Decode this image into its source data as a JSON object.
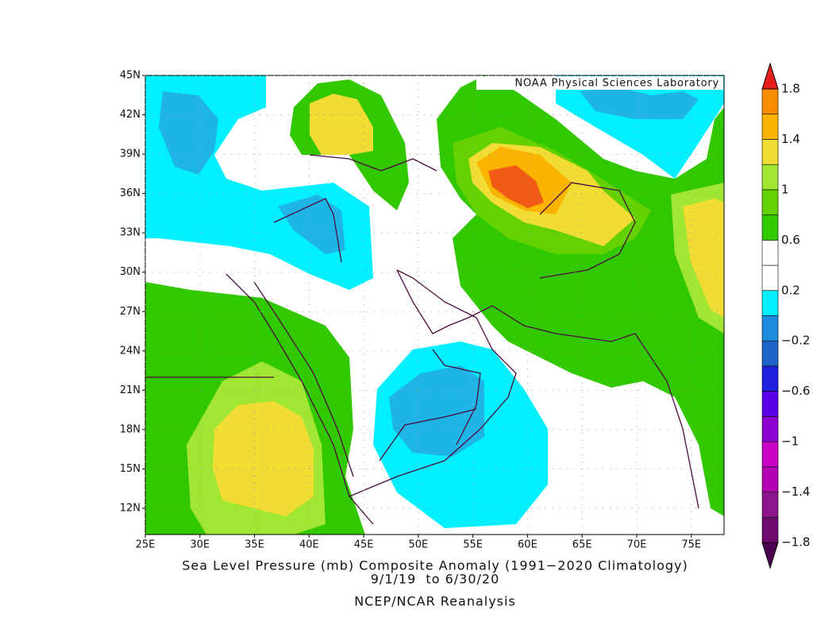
{
  "map": {
    "credit": "NOAA Physical Sciences Laboratory",
    "lon_range": [
      25,
      78
    ],
    "lat_range": [
      10,
      45
    ],
    "lon_ticks": [
      {
        "value": 25,
        "label": "25E"
      },
      {
        "value": 30,
        "label": "30E"
      },
      {
        "value": 35,
        "label": "35E"
      },
      {
        "value": 40,
        "label": "40E"
      },
      {
        "value": 45,
        "label": "45E"
      },
      {
        "value": 50,
        "label": "50E"
      },
      {
        "value": 55,
        "label": "55E"
      },
      {
        "value": 60,
        "label": "60E"
      },
      {
        "value": 65,
        "label": "65E"
      },
      {
        "value": 70,
        "label": "70E"
      },
      {
        "value": 75,
        "label": "75E"
      }
    ],
    "lat_ticks": [
      {
        "value": 45,
        "label": "45N"
      },
      {
        "value": 42,
        "label": "42N"
      },
      {
        "value": 39,
        "label": "39N"
      },
      {
        "value": 36,
        "label": "36N"
      },
      {
        "value": 33,
        "label": "33N"
      },
      {
        "value": 30,
        "label": "30N"
      },
      {
        "value": 27,
        "label": "27N"
      },
      {
        "value": 24,
        "label": "24N"
      },
      {
        "value": 21,
        "label": "21N"
      },
      {
        "value": 18,
        "label": "18N"
      },
      {
        "value": 15,
        "label": "15N"
      },
      {
        "value": 12,
        "label": "12N"
      }
    ]
  },
  "colorbar": {
    "levels": [
      -1.8,
      -1.6,
      -1.4,
      -1.2,
      -1,
      -0.8,
      -0.6,
      -0.4,
      -0.2,
      0,
      0.2,
      0.4,
      0.6,
      0.8,
      1,
      1.2,
      1.4,
      1.6,
      1.8
    ],
    "colors": [
      "#4b0050",
      "#6e0a6e",
      "#8c148c",
      "#b400b4",
      "#c800c8",
      "#8c00d2",
      "#5a00e6",
      "#2020e0",
      "#1e64c8",
      "#1e8cdc",
      "#00f0ff",
      "#ffffff",
      "#ffffff",
      "#32c800",
      "#64d200",
      "#a0e632",
      "#f0dc32",
      "#fab400",
      "#fa8c00",
      "#f05a14",
      "#e61e1e"
    ],
    "ticks": [
      1.8,
      1.4,
      1,
      0.6,
      0.2,
      {
        "value": -0.2,
        "label": "−0.2"
      },
      {
        "value": -0.6,
        "label": "−0.6"
      },
      {
        "value": -1,
        "label": "−1"
      },
      {
        "value": -1.4,
        "label": "−1.4"
      },
      {
        "value": -1.8,
        "label": "−1.8"
      }
    ]
  },
  "caption": {
    "title": "Sea Level Pressure (mb) Composite Anomaly (1991−2020 Climatology)",
    "dates": "9/1/19  to 6/30/20",
    "source": "NCEP/NCAR Reanalysis"
  }
}
